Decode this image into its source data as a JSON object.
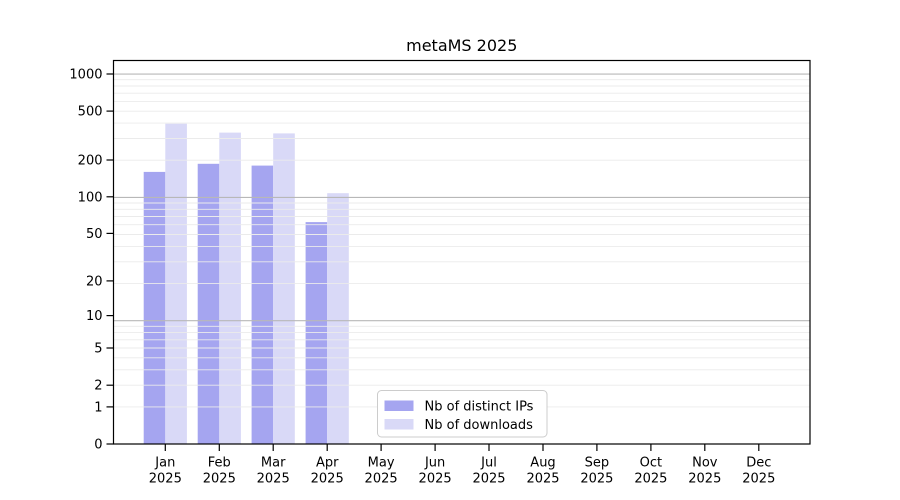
{
  "chart_data": {
    "type": "bar",
    "title": "metaMS 2025",
    "categories": [
      "Jan",
      "Feb",
      "Mar",
      "Apr",
      "May",
      "Jun",
      "Jul",
      "Aug",
      "Sep",
      "Oct",
      "Nov",
      "Dec"
    ],
    "year_label": "2025",
    "series": [
      {
        "name": "Nb of distinct IPs",
        "color": "#a5a5f0",
        "values": [
          160,
          186,
          180,
          62,
          0,
          0,
          0,
          0,
          0,
          0,
          0,
          0
        ]
      },
      {
        "name": "Nb of downloads",
        "color": "#d9d9f7",
        "values": [
          395,
          334,
          329,
          107,
          0,
          0,
          0,
          0,
          0,
          0,
          0,
          0
        ]
      }
    ],
    "yscale": "log1p",
    "yticks": [
      0,
      1,
      2,
      5,
      10,
      20,
      50,
      100,
      200,
      500,
      1000
    ],
    "ylim": [
      0,
      1070
    ],
    "xlabel": "",
    "ylabel": "",
    "grid": true,
    "legend_position": "lower-center",
    "axis_color": "#000000",
    "grid_minor_color": "#ebebeb",
    "grid_major_color": "#b8b8b8"
  }
}
